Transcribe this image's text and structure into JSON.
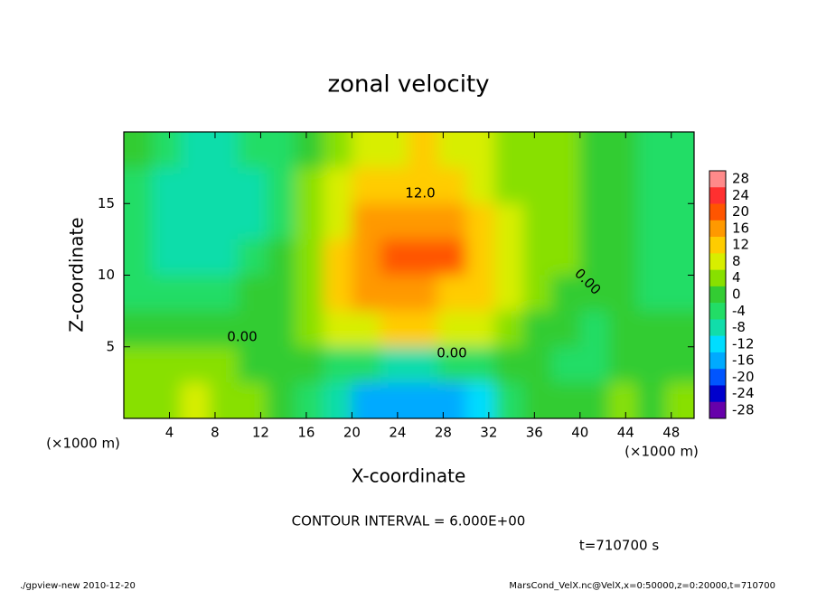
{
  "chart_data": {
    "type": "heatmap",
    "title": "zonal velocity",
    "xlabel": "X-coordinate",
    "ylabel": "Z-coordinate",
    "x_unit": "(×1000 m)",
    "y_unit": "(×1000 m)",
    "note": "CONTOUR INTERVAL = 6.000E+00",
    "time": "t=710700 s",
    "footer_left": "./gpview-new  2010-12-20",
    "footer_right": "MarsCond_VelX.nc@VelX,x=0:50000,z=0:20000,t=710700",
    "contour_labels": [
      "12.0",
      "0.00",
      "0.00",
      "0.00"
    ],
    "xlim": [
      0,
      50
    ],
    "ylim": [
      0,
      20
    ],
    "xticks": [
      4,
      8,
      12,
      16,
      20,
      24,
      28,
      32,
      36,
      40,
      44,
      48
    ],
    "yticks": [
      5,
      10,
      15
    ],
    "x": [
      1.25,
      3.75,
      6.25,
      8.75,
      11.25,
      13.75,
      16.25,
      18.75,
      21.25,
      23.75,
      26.25,
      28.75,
      31.25,
      33.75,
      36.25,
      38.75,
      41.25,
      43.75,
      46.25,
      48.75
    ],
    "z": [
      18.75,
      16.25,
      13.75,
      11.25,
      8.75,
      6.25,
      3.75,
      1.25
    ],
    "values": [
      [
        -2,
        -5,
        -7,
        -7,
        -6,
        -3,
        0,
        5,
        7,
        9,
        10,
        9,
        7,
        5,
        3,
        2,
        1,
        -1,
        -3,
        -4
      ],
      [
        -3,
        -7,
        -9,
        -9,
        -7,
        -3,
        2,
        7,
        10,
        12,
        13,
        11,
        8,
        5,
        3,
        2,
        0,
        -2,
        -4,
        -5
      ],
      [
        -4,
        -8,
        -10,
        -10,
        -7,
        -3,
        3,
        9,
        14,
        16,
        17,
        15,
        10,
        6,
        3,
        2,
        0,
        -2,
        -4,
        -5
      ],
      [
        -4,
        -7,
        -9,
        -8,
        -5,
        -2,
        4,
        11,
        16,
        19,
        20,
        18,
        12,
        6,
        4,
        2,
        1,
        -1,
        -3,
        -4
      ],
      [
        -3,
        -4,
        -5,
        -4,
        -2,
        0,
        4,
        10,
        14,
        15,
        15,
        13,
        10,
        6,
        3,
        1,
        -1,
        -2,
        -3,
        -3
      ],
      [
        -1,
        -1,
        0,
        0,
        0,
        1,
        5,
        7,
        9,
        10,
        10,
        9,
        7,
        4,
        1,
        -2,
        -3,
        -1,
        -2,
        -2
      ],
      [
        2,
        3,
        4,
        2,
        0,
        -1,
        -2,
        -4,
        -6,
        -8,
        -7,
        -6,
        -4,
        -2,
        0,
        -4,
        -5,
        -2,
        -1,
        -1
      ],
      [
        3,
        4,
        6,
        5,
        3,
        0,
        -4,
        -10,
        -15,
        -18,
        -18,
        -16,
        -12,
        -6,
        -1,
        0,
        1,
        2,
        1,
        5
      ]
    ],
    "colorbar_ticks": [
      28,
      24,
      20,
      16,
      12,
      8,
      4,
      0,
      -4,
      -8,
      -12,
      -16,
      -20,
      -24,
      -28
    ],
    "colorbar_colors": [
      "#ff8a8a",
      "#ff3030",
      "#ff5500",
      "#ff9900",
      "#ffcc00",
      "#d8ee00",
      "#88e000",
      "#33cc33",
      "#22dd66",
      "#11ddaa",
      "#00ddff",
      "#00aaff",
      "#0055ff",
      "#0000cc",
      "#6600aa"
    ]
  }
}
